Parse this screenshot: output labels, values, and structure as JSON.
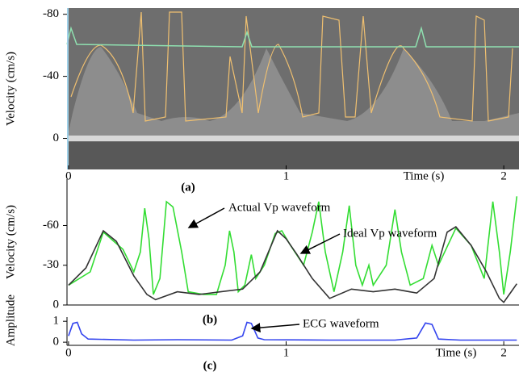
{
  "chart_data": [
    {
      "type": "image",
      "label": "(a)",
      "ylabel": "Velocity (cm/s)",
      "xlabel": "Time (s)",
      "xlim": [
        -0.007,
        2.07
      ],
      "xticks": [
        0,
        1,
        2
      ],
      "ylim": [
        20,
        -84
      ],
      "yticks": [
        -80,
        -40,
        0
      ]
    },
    {
      "type": "line",
      "label": "(b)",
      "ylabel": "Velocity (cm/s)",
      "xlim": [
        -0.007,
        2.07
      ],
      "ylim": [
        0,
        -95
      ],
      "yticks": [
        -60,
        -30,
        0
      ],
      "series": [
        {
          "name": "Actual Vp  waveform",
          "color": "#33dd33",
          "x": [
            0,
            0.1,
            0.16,
            0.25,
            0.3,
            0.33,
            0.35,
            0.37,
            0.39,
            0.42,
            0.45,
            0.48,
            0.52,
            0.55,
            0.62,
            0.68,
            0.72,
            0.74,
            0.76,
            0.78,
            0.81,
            0.84,
            0.86,
            0.9,
            0.95,
            0.98,
            1.02,
            1.08,
            1.12,
            1.15,
            1.18,
            1.22,
            1.26,
            1.29,
            1.32,
            1.35,
            1.38,
            1.4,
            1.46,
            1.5,
            1.53,
            1.57,
            1.63,
            1.67,
            1.7,
            1.78,
            1.85,
            1.91,
            1.95,
            1.98,
            2.0,
            2.03,
            2.06
          ],
          "values": [
            -15,
            -25,
            -55,
            -42,
            -25,
            -40,
            -73,
            -50,
            -8,
            -20,
            -78,
            -74,
            -40,
            -10,
            -8,
            -8,
            -30,
            -56,
            -40,
            -10,
            -15,
            -38,
            -20,
            -30,
            -54,
            -56,
            -45,
            -30,
            -55,
            -78,
            -40,
            -10,
            -40,
            -75,
            -30,
            -15,
            -30,
            -15,
            -30,
            -72,
            -40,
            -15,
            -20,
            -45,
            -30,
            -58,
            -45,
            -20,
            -78,
            -40,
            -8,
            -40,
            -82
          ]
        },
        {
          "name": "Ideal Vp  waveform",
          "color": "#333333",
          "x": [
            0,
            0.08,
            0.16,
            0.22,
            0.3,
            0.36,
            0.4,
            0.5,
            0.6,
            0.7,
            0.8,
            0.88,
            0.96,
            1.0,
            1.05,
            1.12,
            1.2,
            1.3,
            1.4,
            1.5,
            1.6,
            1.68,
            1.74,
            1.78,
            1.85,
            1.92,
            1.98,
            2.0,
            2.06
          ],
          "values": [
            -15,
            -28,
            -56,
            -48,
            -22,
            -8,
            -4,
            -10,
            -8,
            -10,
            -12,
            -25,
            -56,
            -50,
            -38,
            -20,
            -5,
            -12,
            -10,
            -12,
            -9,
            -20,
            -55,
            -59,
            -45,
            -25,
            -5,
            -2,
            -16
          ]
        }
      ]
    },
    {
      "type": "line",
      "label": "(c)",
      "ylabel": "Amplitude",
      "xlabel": "Time (s)",
      "xlim": [
        -0.007,
        2.07
      ],
      "xticks": [
        0,
        1,
        2
      ],
      "ylim": [
        -0.15,
        1.2
      ],
      "yticks": [
        0,
        1
      ],
      "series": [
        {
          "name": "ECG waveform",
          "color": "#3344ee",
          "x": [
            0,
            0.02,
            0.04,
            0.06,
            0.09,
            0.3,
            0.5,
            0.75,
            0.8,
            0.82,
            0.84,
            0.87,
            0.9,
            1.2,
            1.5,
            1.6,
            1.64,
            1.67,
            1.7,
            1.8,
            2.06
          ],
          "values": [
            0.3,
            0.9,
            0.95,
            0.4,
            0.15,
            0.1,
            0.12,
            0.1,
            0.3,
            0.95,
            0.9,
            0.2,
            0.12,
            0.1,
            0.1,
            0.2,
            0.92,
            0.85,
            0.15,
            0.1,
            0.1
          ]
        }
      ]
    }
  ]
}
